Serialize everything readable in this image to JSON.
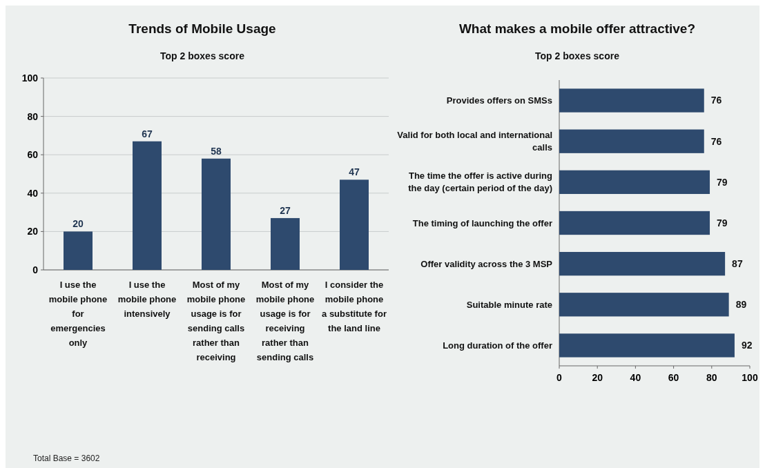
{
  "chart_data": [
    {
      "type": "bar",
      "title": "Trends of Mobile Usage",
      "subtitle": "Top 2 boxes score",
      "categories": [
        "I use the mobile phone for emergencies only",
        "I use the mobile phone intensively",
        "Most of my mobile phone usage is for sending calls rather than receiving",
        "Most of my mobile phone usage is for receiving rather than sending calls",
        "I consider the mobile phone a substitute for the land line"
      ],
      "values": [
        20,
        67,
        58,
        27,
        47
      ],
      "color": "#2e4a6e",
      "ylim": [
        0,
        100
      ],
      "yticks": [
        0,
        20,
        40,
        60,
        80,
        100
      ],
      "grid": "y",
      "data_labels": true,
      "annotations": [
        "Total Base = 3602"
      ]
    },
    {
      "type": "bar",
      "orientation": "horizontal",
      "title": "What makes a mobile offer attractive?",
      "subtitle": "Top 2 boxes score",
      "categories": [
        "Provides offers on SMSs",
        "Valid for both local and international calls",
        "The time the offer is active during the day (certain period of the day)",
        "The timing of launching the offer",
        "Offer validity across the 3 MSP",
        "Suitable minute rate",
        "Long duration of the offer"
      ],
      "values": [
        76,
        76,
        79,
        79,
        87,
        89,
        92
      ],
      "color": "#2e4a6e",
      "xlim": [
        0,
        100
      ],
      "xticks": [
        0,
        20,
        40,
        60,
        80,
        100
      ],
      "data_labels": true
    }
  ]
}
